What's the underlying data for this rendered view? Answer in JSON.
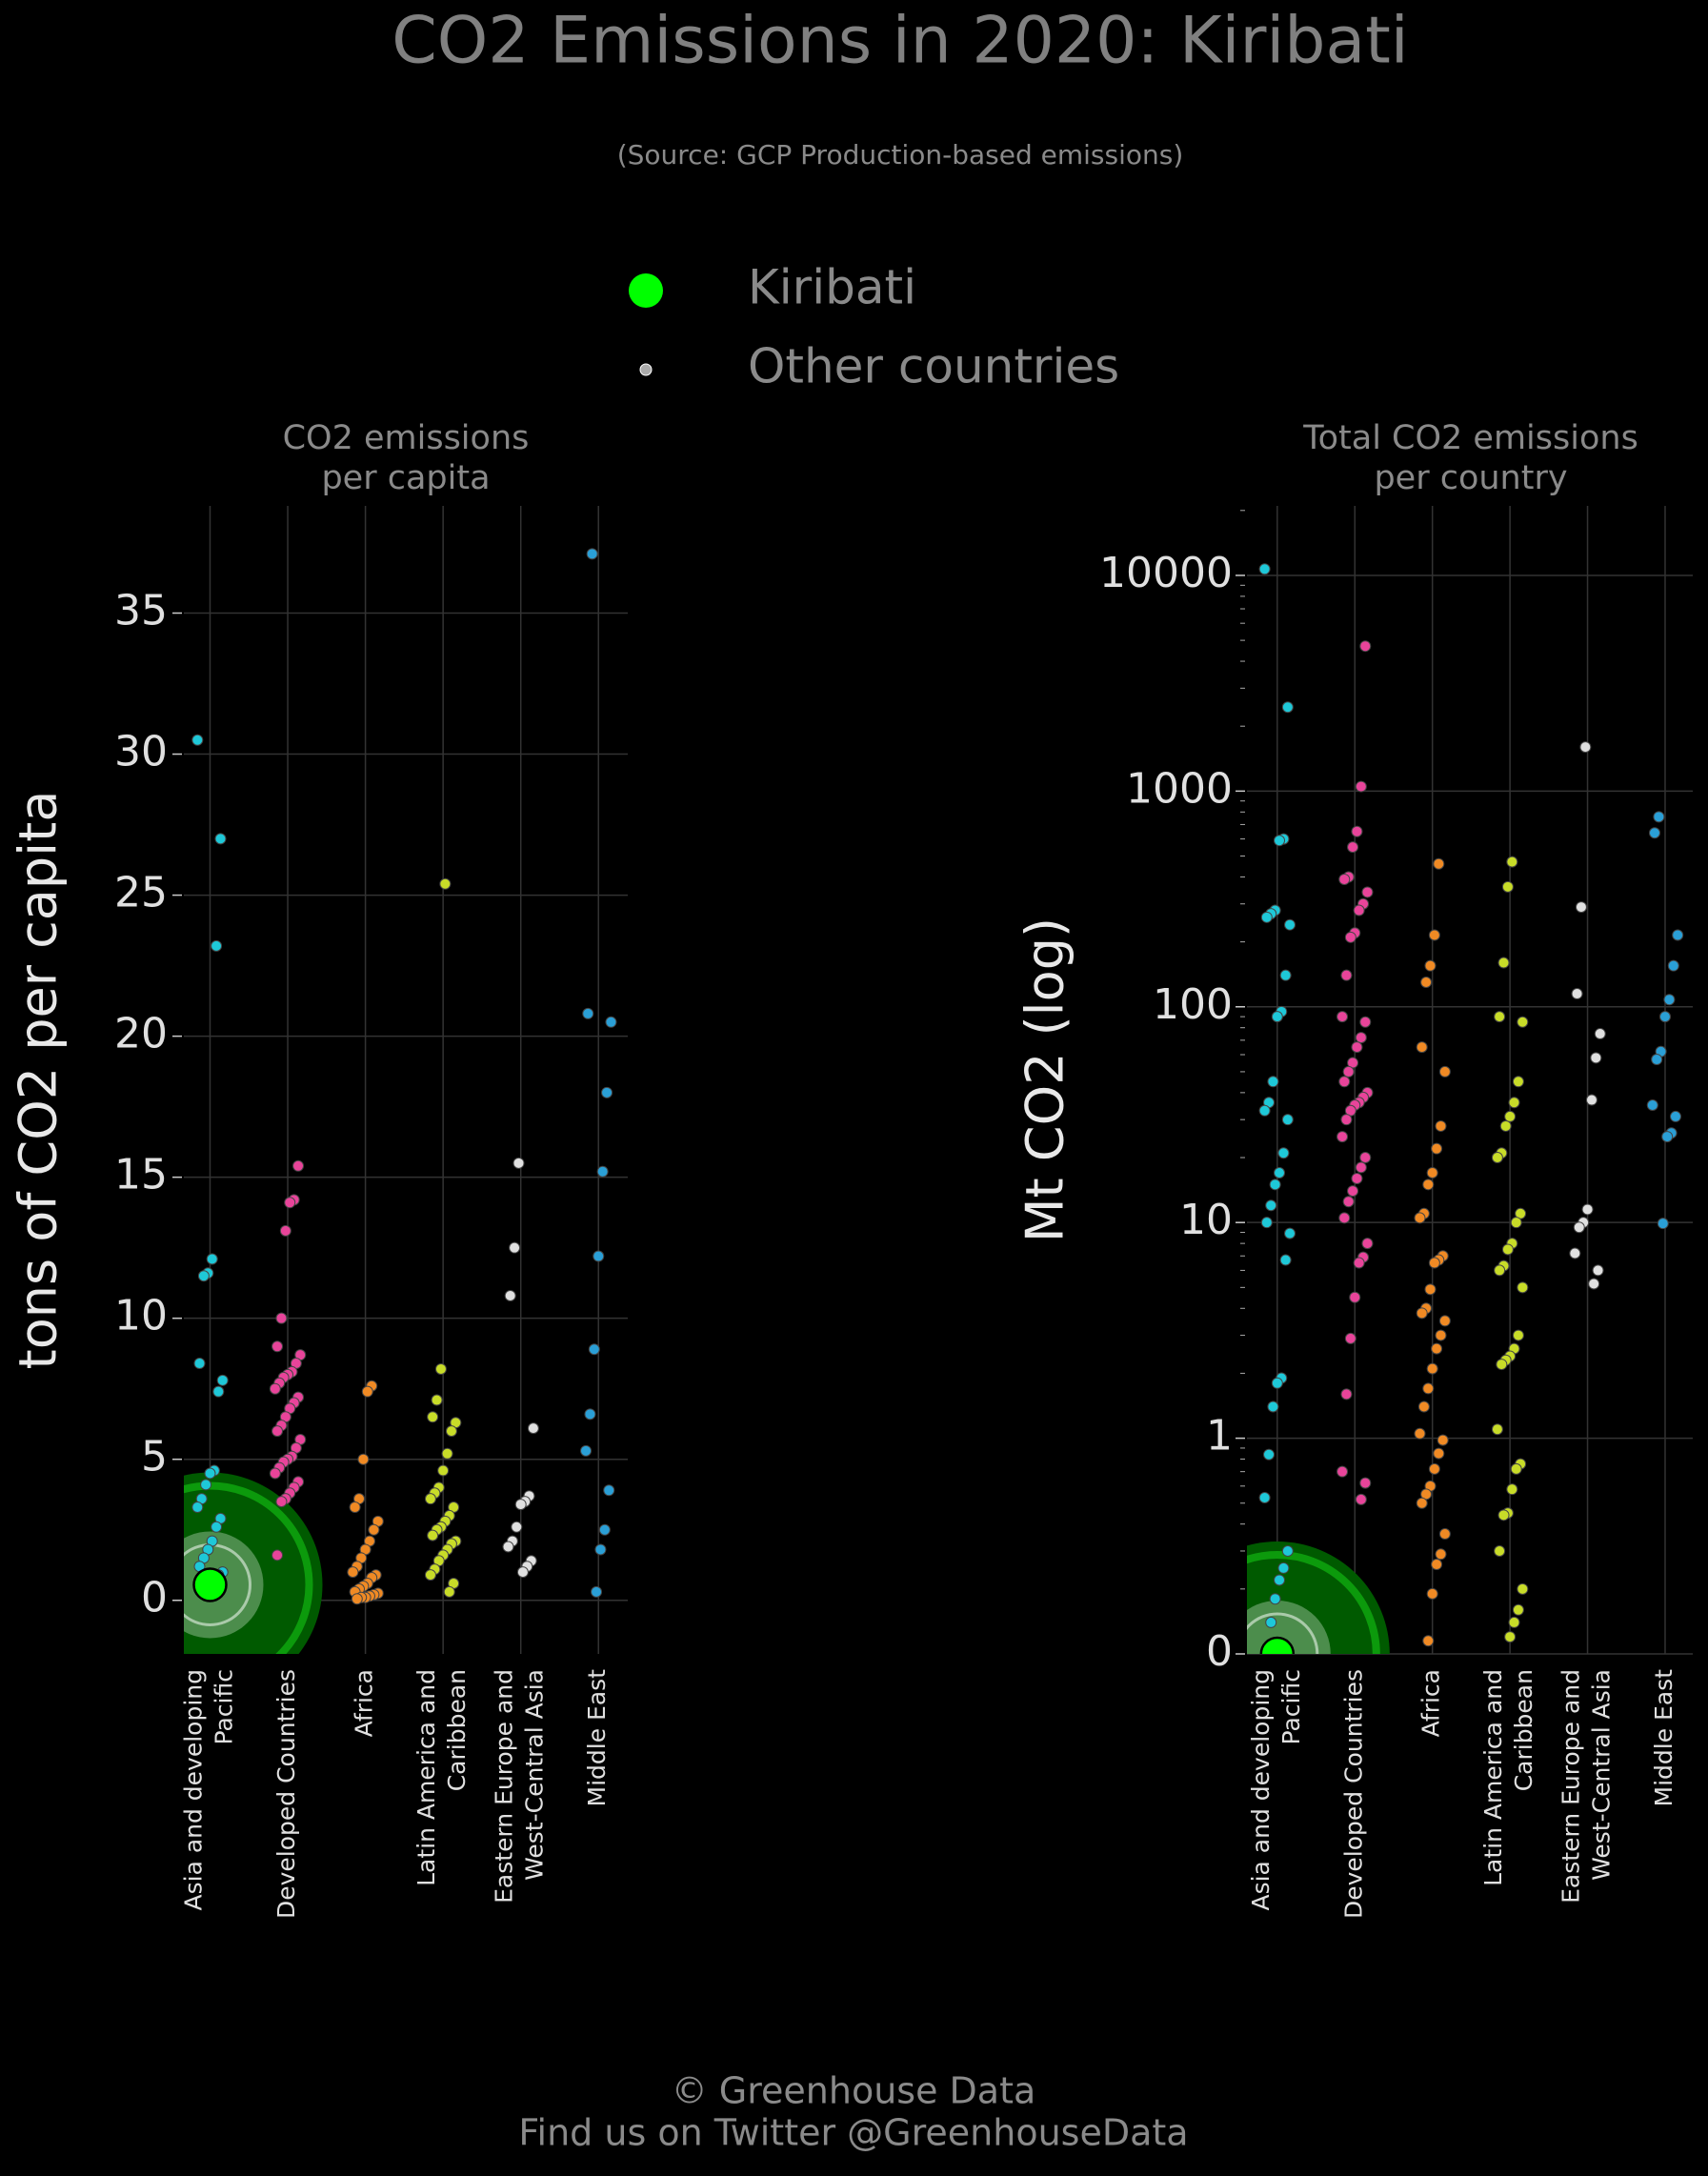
{
  "title": "CO2 Emissions in 2020: Kiribati",
  "subtitle": "(Source: GCP Production-based emissions)",
  "legend": [
    {
      "name": "Kiribati",
      "color": "#00ff00"
    },
    {
      "name": "Other countries",
      "color": "#aaaaaa"
    }
  ],
  "footer": [
    "© Greenhouse Data",
    "Find us on Twitter @GreenhouseData"
  ],
  "chart_data": [
    {
      "type": "strip",
      "title": [
        "CO2 emissions",
        "per capita"
      ],
      "ylabel": "tons of CO2 per capita",
      "yscale": "linear",
      "ylim": [
        -1.9,
        38.8
      ],
      "yticks": [
        0,
        5,
        10,
        15,
        20,
        25,
        30,
        35
      ],
      "grid": true,
      "categories": [
        [
          "Asia and developing",
          "Pacific"
        ],
        [
          "Developed Countries"
        ],
        [
          "Africa"
        ],
        [
          "Latin America and",
          "Caribbean"
        ],
        [
          "Eastern Europe and",
          "West-Central Asia"
        ],
        [
          "Middle East"
        ]
      ],
      "series": [
        {
          "color": "#1ec8d8",
          "values": [
            30.5,
            27,
            23.2,
            12.1,
            11.6,
            11.5,
            8.4,
            7.8,
            7.4,
            4.6,
            4.5,
            4.1,
            3.6,
            3.3,
            2.9,
            2.6,
            2.1,
            1.8,
            1.5,
            1.2,
            1.0,
            0.9,
            0.7,
            0.6
          ]
        },
        {
          "color": "#e8449a",
          "values": [
            15.4,
            14.2,
            14.1,
            13.1,
            10.0,
            9.0,
            8.7,
            8.4,
            8.1,
            8.0,
            7.9,
            7.7,
            7.5,
            7.2,
            7.0,
            6.8,
            6.5,
            6.2,
            6.0,
            5.7,
            5.4,
            5.1,
            5.0,
            4.9,
            4.7,
            4.5,
            4.2,
            4.0,
            3.8,
            3.6,
            3.5,
            1.6
          ]
        },
        {
          "color": "#f08a24",
          "values": [
            7.6,
            7.4,
            5.0,
            3.6,
            3.3,
            2.8,
            2.5,
            2.1,
            1.8,
            1.5,
            1.2,
            1.0,
            0.9,
            0.8,
            0.6,
            0.5,
            0.4,
            0.3,
            0.25,
            0.2,
            0.15,
            0.1,
            0.1,
            0.05
          ]
        },
        {
          "color": "#c8dc28",
          "values": [
            25.4,
            8.2,
            7.1,
            6.5,
            6.3,
            6.0,
            5.2,
            4.6,
            4.0,
            3.8,
            3.6,
            3.3,
            3.0,
            2.8,
            2.6,
            2.5,
            2.3,
            2.1,
            2.0,
            1.8,
            1.6,
            1.4,
            1.1,
            0.9,
            0.6,
            0.3
          ]
        },
        {
          "color": "#e0e0e0",
          "values": [
            15.5,
            12.5,
            10.8,
            6.1,
            3.7,
            3.5,
            3.4,
            2.6,
            2.1,
            1.9,
            1.4,
            1.2,
            1.0
          ]
        },
        {
          "color": "#2a9fd6",
          "values": [
            37.1,
            20.8,
            20.5,
            18.0,
            15.2,
            12.2,
            8.9,
            6.6,
            5.3,
            3.9,
            2.5,
            1.8,
            0.3
          ]
        }
      ],
      "highlight": {
        "category": 0,
        "value": 0.55,
        "color": "#00ff00"
      }
    },
    {
      "type": "strip",
      "title": [
        "Total CO2 emissions",
        "per country"
      ],
      "ylabel": "Mt CO2 (log)",
      "yscale": "log",
      "ylim": [
        0.1,
        21000
      ],
      "yticks": [
        {
          "value": 0.1,
          "label": "0"
        },
        1,
        10,
        100,
        1000,
        10000
      ],
      "grid": true,
      "categories": [
        [
          "Asia and developing",
          "Pacific"
        ],
        [
          "Developed Countries"
        ],
        [
          "Africa"
        ],
        [
          "Latin America and",
          "Caribbean"
        ],
        [
          "Eastern Europe and",
          "West-Central Asia"
        ],
        [
          "Middle East"
        ]
      ],
      "series": [
        {
          "color": "#1ec8d8",
          "values": [
            10700,
            2450,
            600,
            590,
            280,
            270,
            260,
            240,
            140,
            95,
            90,
            45,
            36,
            33,
            30,
            21,
            17,
            15,
            12,
            10,
            8.9,
            6.7,
            1.9,
            1.8,
            1.4,
            0.84,
            0.53,
            0.3,
            0.25,
            0.22,
            0.18,
            0.14
          ]
        },
        {
          "color": "#e8449a",
          "values": [
            4700,
            1050,
            650,
            550,
            400,
            390,
            340,
            300,
            280,
            220,
            210,
            140,
            90,
            85,
            72,
            65,
            55,
            50,
            45,
            40,
            38,
            36,
            35,
            33,
            30,
            25,
            20,
            18,
            16,
            14,
            12.5,
            10.5,
            8,
            6.9,
            6.5,
            4.5,
            2.9,
            1.6,
            0.7,
            0.62,
            0.52
          ]
        },
        {
          "color": "#f08a24",
          "values": [
            460,
            215,
            155,
            130,
            65,
            50,
            28,
            22,
            17,
            15,
            11,
            10.5,
            7,
            6.7,
            6.5,
            4.9,
            4,
            3.8,
            3.5,
            3.0,
            2.6,
            2.1,
            1.7,
            1.4,
            1.05,
            0.98,
            0.85,
            0.72,
            0.6,
            0.55,
            0.5,
            0.36,
            0.29,
            0.26,
            0.19,
            0.115
          ]
        },
        {
          "color": "#c8dc28",
          "values": [
            470,
            360,
            160,
            90,
            85,
            45,
            36,
            31,
            28,
            21,
            20,
            11,
            10,
            8,
            7.5,
            6.3,
            6,
            5,
            3,
            2.6,
            2.4,
            2.3,
            2.2,
            1.1,
            0.76,
            0.72,
            0.58,
            0.45,
            0.44,
            0.3,
            0.2,
            0.16,
            0.14,
            0.12
          ]
        },
        {
          "color": "#e0e0e0",
          "values": [
            1600,
            290,
            115,
            75,
            58,
            37,
            11.5,
            10,
            9.5,
            7.2,
            6,
            5.2
          ]
        },
        {
          "color": "#2a9fd6",
          "values": [
            760,
            640,
            215,
            155,
            108,
            90,
            62,
            57,
            35,
            31,
            26,
            25,
            9.9
          ]
        }
      ],
      "highlight": {
        "category": 0,
        "value": 0.1,
        "color": "#00ff00"
      }
    }
  ]
}
